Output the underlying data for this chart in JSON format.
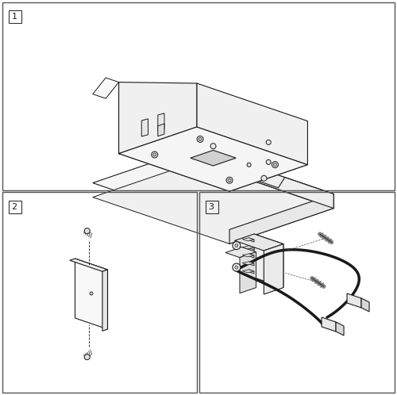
{
  "bg_color": "#ffffff",
  "line_color": "#1a1a1a",
  "figsize": [
    5.0,
    4.98
  ],
  "dpi": 100
}
